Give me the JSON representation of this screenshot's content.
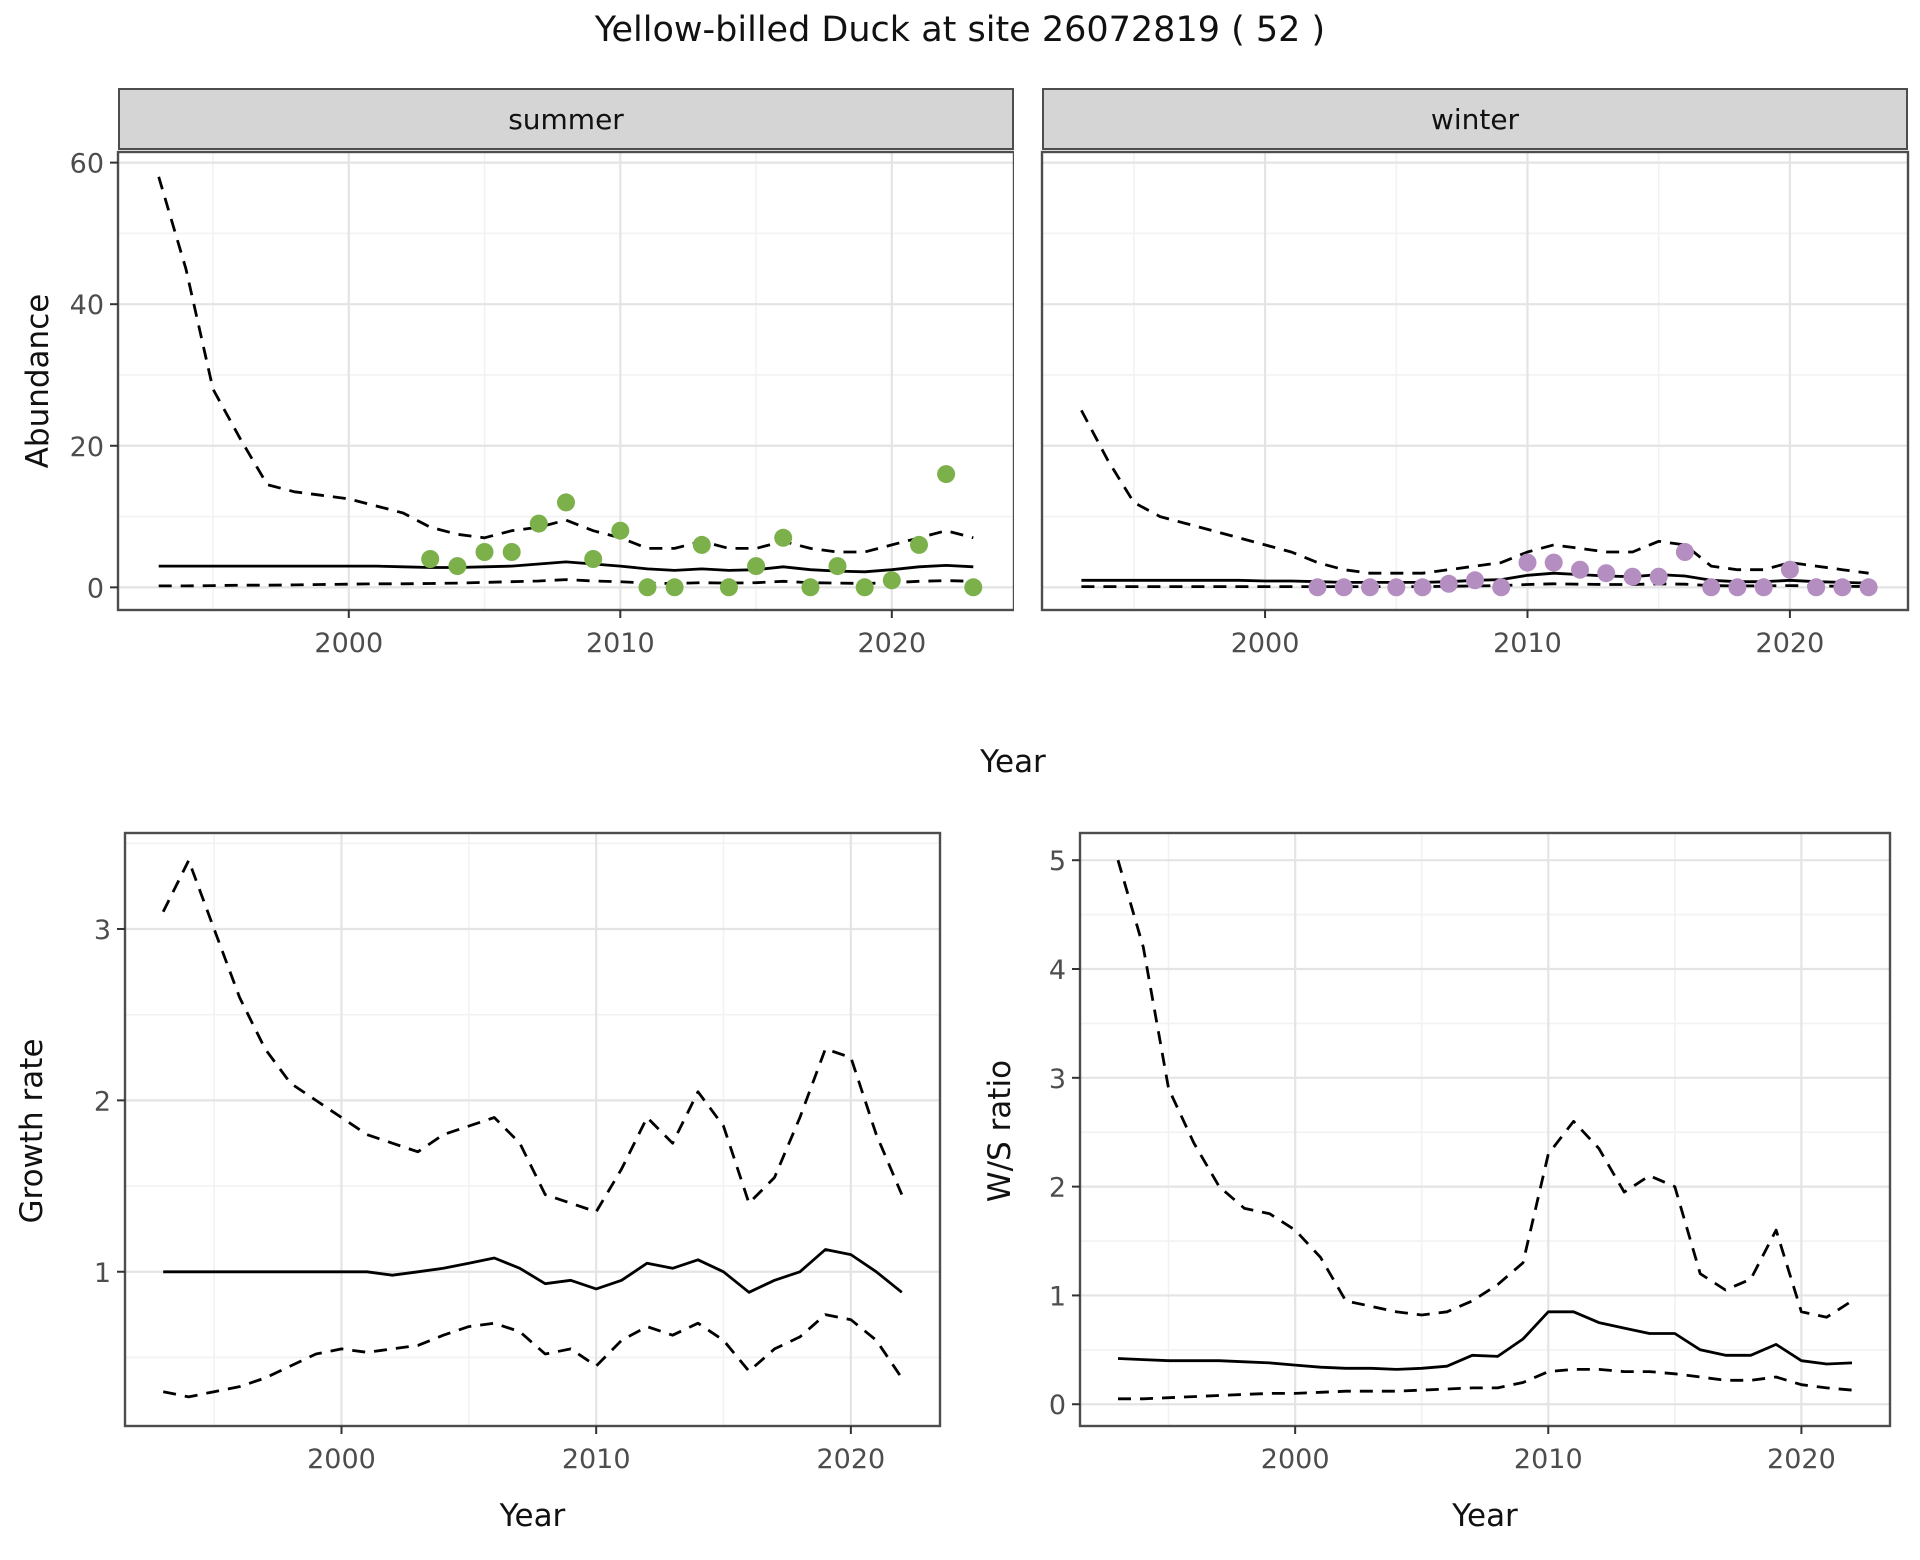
{
  "title": "Yellow-billed Duck at site 26072819 ( 52 )",
  "axis_labels": {
    "x": "Year",
    "abundance": "Abundance",
    "growth": "Growth rate",
    "ws": "W/S ratio"
  },
  "facets": {
    "summer": "summer",
    "winter": "winter"
  },
  "colors": {
    "summer_points": "#7cb04a",
    "winter_points": "#b48ec0",
    "line": "#000000",
    "strip_bg": "#d5d5d5",
    "panel_border": "#4d4d4d",
    "grid_major": "#e4e4e4",
    "grid_minor": "#f2f2f2",
    "tick_text": "#4d4d4d"
  },
  "chart_data": [
    {
      "id": "abundance-summer",
      "type": "line",
      "facet": "summer",
      "xlabel": "Year",
      "ylabel": "Abundance",
      "xlim": [
        1991.5,
        2024.5
      ],
      "ylim": [
        -3.2,
        61.5
      ],
      "xticks": [
        2000,
        2010,
        2020
      ],
      "xminor": [
        1995,
        2005,
        2015
      ],
      "yticks": [
        0,
        20,
        40,
        60
      ],
      "yminor": [
        10,
        30,
        50
      ],
      "years": [
        1993,
        1994,
        1995,
        1996,
        1997,
        1998,
        1999,
        2000,
        2001,
        2002,
        2003,
        2004,
        2005,
        2006,
        2007,
        2008,
        2009,
        2010,
        2011,
        2012,
        2013,
        2014,
        2015,
        2016,
        2017,
        2018,
        2019,
        2020,
        2021,
        2022,
        2023
      ],
      "series": [
        {
          "name": "upper-ci",
          "style": "dashed",
          "y": [
            58,
            45,
            28,
            21,
            14.5,
            13.5,
            13,
            12.5,
            11.5,
            10.5,
            8.5,
            7.5,
            7,
            8,
            8.5,
            9.5,
            8,
            7,
            5.5,
            5.5,
            6.5,
            5.5,
            5.5,
            6.5,
            5.5,
            5,
            5,
            6,
            7,
            8,
            7
          ]
        },
        {
          "name": "fit",
          "style": "solid",
          "y": [
            3,
            3,
            3,
            3,
            3,
            3,
            3,
            3,
            3,
            2.9,
            2.8,
            2.8,
            2.9,
            3,
            3.3,
            3.6,
            3.3,
            3,
            2.6,
            2.4,
            2.6,
            2.4,
            2.5,
            2.9,
            2.5,
            2.3,
            2.2,
            2.5,
            2.9,
            3.1,
            2.9
          ]
        },
        {
          "name": "lower-ci",
          "style": "dashed",
          "y": [
            0.2,
            0.2,
            0.25,
            0.3,
            0.3,
            0.35,
            0.4,
            0.45,
            0.5,
            0.5,
            0.55,
            0.6,
            0.7,
            0.8,
            0.9,
            1.1,
            0.9,
            0.8,
            0.6,
            0.55,
            0.65,
            0.6,
            0.65,
            0.85,
            0.65,
            0.6,
            0.55,
            0.65,
            0.85,
            0.95,
            0.85
          ]
        }
      ],
      "points": {
        "name": "observed-counts",
        "color_key": "summer_points",
        "x": [
          2003,
          2004,
          2005,
          2006,
          2007,
          2008,
          2009,
          2010,
          2011,
          2012,
          2013,
          2014,
          2015,
          2016,
          2017,
          2018,
          2019,
          2020,
          2021,
          2022,
          2023
        ],
        "y": [
          4,
          3,
          5,
          5,
          9,
          12,
          4,
          8,
          0,
          0,
          6,
          0,
          3,
          7,
          0,
          3,
          0,
          1,
          6,
          16,
          0
        ]
      }
    },
    {
      "id": "abundance-winter",
      "type": "line",
      "facet": "winter",
      "xlabel": "Year",
      "ylabel": "Abundance",
      "xlim": [
        1991.5,
        2024.5
      ],
      "ylim": [
        -3.2,
        61.5
      ],
      "xticks": [
        2000,
        2010,
        2020
      ],
      "xminor": [
        1995,
        2005,
        2015
      ],
      "yticks": [
        0,
        20,
        40,
        60
      ],
      "yminor": [
        10,
        30,
        50
      ],
      "years": [
        1993,
        1994,
        1995,
        1996,
        1997,
        1998,
        1999,
        2000,
        2001,
        2002,
        2003,
        2004,
        2005,
        2006,
        2007,
        2008,
        2009,
        2010,
        2011,
        2012,
        2013,
        2014,
        2015,
        2016,
        2017,
        2018,
        2019,
        2020,
        2021,
        2022,
        2023
      ],
      "series": [
        {
          "name": "upper-ci",
          "style": "dashed",
          "y": [
            25,
            18,
            12,
            10,
            9,
            8,
            7,
            6,
            5,
            3.5,
            2.5,
            2,
            2,
            2,
            2.5,
            3,
            3.5,
            5,
            6,
            5.5,
            5,
            5,
            6.5,
            6,
            3,
            2.5,
            2.5,
            3.5,
            3,
            2.5,
            2
          ]
        },
        {
          "name": "fit",
          "style": "solid",
          "y": [
            1,
            1,
            1,
            1,
            1,
            1,
            1,
            0.9,
            0.9,
            0.8,
            0.7,
            0.7,
            0.7,
            0.7,
            0.8,
            1,
            1.1,
            1.7,
            2,
            1.8,
            1.6,
            1.5,
            1.8,
            1.6,
            1,
            0.8,
            0.8,
            1,
            0.8,
            0.7,
            0.6
          ]
        },
        {
          "name": "lower-ci",
          "style": "dashed",
          "y": [
            0.1,
            0.1,
            0.1,
            0.1,
            0.1,
            0.1,
            0.1,
            0.1,
            0.1,
            0.1,
            0.1,
            0.1,
            0.1,
            0.1,
            0.15,
            0.2,
            0.25,
            0.4,
            0.5,
            0.45,
            0.4,
            0.4,
            0.5,
            0.45,
            0.25,
            0.2,
            0.2,
            0.25,
            0.2,
            0.15,
            0.1
          ]
        }
      ],
      "points": {
        "name": "observed-counts",
        "color_key": "winter_points",
        "x": [
          2002,
          2003,
          2004,
          2005,
          2006,
          2007,
          2008,
          2009,
          2010,
          2011,
          2012,
          2013,
          2014,
          2015,
          2016,
          2017,
          2018,
          2019,
          2020,
          2021,
          2022,
          2023
        ],
        "y": [
          0,
          0,
          0,
          0,
          0,
          0.5,
          1,
          0,
          3.5,
          3.5,
          2.5,
          2,
          1.5,
          1.5,
          5,
          0,
          0,
          0,
          2.5,
          0,
          0,
          0
        ]
      }
    },
    {
      "id": "growth-rate",
      "type": "line",
      "xlabel": "Year",
      "ylabel": "Growth rate",
      "xlim": [
        1991.5,
        2023.5
      ],
      "ylim": [
        0.1,
        3.56
      ],
      "xticks": [
        2000,
        2010,
        2020
      ],
      "xminor": [
        1995,
        2005,
        2015
      ],
      "yticks": [
        1,
        2,
        3
      ],
      "yminor": [
        0.5,
        1.5,
        2.5,
        3.5
      ],
      "years": [
        1993,
        1994,
        1995,
        1996,
        1997,
        1998,
        1999,
        2000,
        2001,
        2002,
        2003,
        2004,
        2005,
        2006,
        2007,
        2008,
        2009,
        2010,
        2011,
        2012,
        2013,
        2014,
        2015,
        2016,
        2017,
        2018,
        2019,
        2020,
        2021,
        2022
      ],
      "series": [
        {
          "name": "upper-ci",
          "style": "dashed",
          "y": [
            3.1,
            3.4,
            3.0,
            2.6,
            2.3,
            2.1,
            2.0,
            1.9,
            1.8,
            1.75,
            1.7,
            1.8,
            1.85,
            1.9,
            1.75,
            1.45,
            1.4,
            1.35,
            1.6,
            1.9,
            1.75,
            2.05,
            1.85,
            1.4,
            1.55,
            1.9,
            2.3,
            2.25,
            1.8,
            1.45
          ]
        },
        {
          "name": "fit",
          "style": "solid",
          "y": [
            1.0,
            1.0,
            1.0,
            1.0,
            1.0,
            1.0,
            1.0,
            1.0,
            1.0,
            0.98,
            1.0,
            1.02,
            1.05,
            1.08,
            1.02,
            0.93,
            0.95,
            0.9,
            0.95,
            1.05,
            1.02,
            1.07,
            1.0,
            0.88,
            0.95,
            1.0,
            1.13,
            1.1,
            1.0,
            0.88
          ]
        },
        {
          "name": "lower-ci",
          "style": "dashed",
          "y": [
            0.3,
            0.27,
            0.3,
            0.33,
            0.38,
            0.45,
            0.52,
            0.55,
            0.53,
            0.55,
            0.57,
            0.63,
            0.68,
            0.7,
            0.65,
            0.52,
            0.55,
            0.45,
            0.6,
            0.68,
            0.63,
            0.7,
            0.6,
            0.42,
            0.55,
            0.62,
            0.75,
            0.72,
            0.6,
            0.38
          ]
        }
      ]
    },
    {
      "id": "ws-ratio",
      "type": "line",
      "xlabel": "Year",
      "ylabel": "W/S ratio",
      "xlim": [
        1991.5,
        2023.5
      ],
      "ylim": [
        -0.2,
        5.25
      ],
      "xticks": [
        2000,
        2010,
        2020
      ],
      "xminor": [
        1995,
        2005,
        2015
      ],
      "yticks": [
        0,
        1,
        2,
        3,
        4,
        5
      ],
      "yminor": [
        0.5,
        1.5,
        2.5,
        3.5,
        4.5
      ],
      "years": [
        1993,
        1994,
        1995,
        1996,
        1997,
        1998,
        1999,
        2000,
        2001,
        2002,
        2003,
        2004,
        2005,
        2006,
        2007,
        2008,
        2009,
        2010,
        2011,
        2012,
        2013,
        2014,
        2015,
        2016,
        2017,
        2018,
        2019,
        2020,
        2021,
        2022
      ],
      "series": [
        {
          "name": "upper-ci",
          "style": "dashed",
          "y": [
            5.0,
            4.2,
            2.9,
            2.4,
            2.0,
            1.8,
            1.75,
            1.6,
            1.35,
            0.95,
            0.9,
            0.85,
            0.82,
            0.85,
            0.95,
            1.1,
            1.3,
            2.3,
            2.6,
            2.35,
            1.95,
            2.1,
            2.0,
            1.2,
            1.05,
            1.15,
            1.6,
            0.85,
            0.8,
            0.95
          ]
        },
        {
          "name": "fit",
          "style": "solid",
          "y": [
            0.42,
            0.41,
            0.4,
            0.4,
            0.4,
            0.39,
            0.38,
            0.36,
            0.34,
            0.33,
            0.33,
            0.32,
            0.33,
            0.35,
            0.45,
            0.44,
            0.6,
            0.85,
            0.85,
            0.75,
            0.7,
            0.65,
            0.65,
            0.5,
            0.45,
            0.45,
            0.55,
            0.4,
            0.37,
            0.38
          ]
        },
        {
          "name": "lower-ci",
          "style": "dashed",
          "y": [
            0.05,
            0.05,
            0.06,
            0.07,
            0.08,
            0.09,
            0.1,
            0.1,
            0.11,
            0.12,
            0.12,
            0.12,
            0.13,
            0.14,
            0.15,
            0.15,
            0.2,
            0.3,
            0.32,
            0.32,
            0.3,
            0.3,
            0.28,
            0.25,
            0.22,
            0.22,
            0.25,
            0.18,
            0.15,
            0.13
          ]
        }
      ]
    }
  ]
}
